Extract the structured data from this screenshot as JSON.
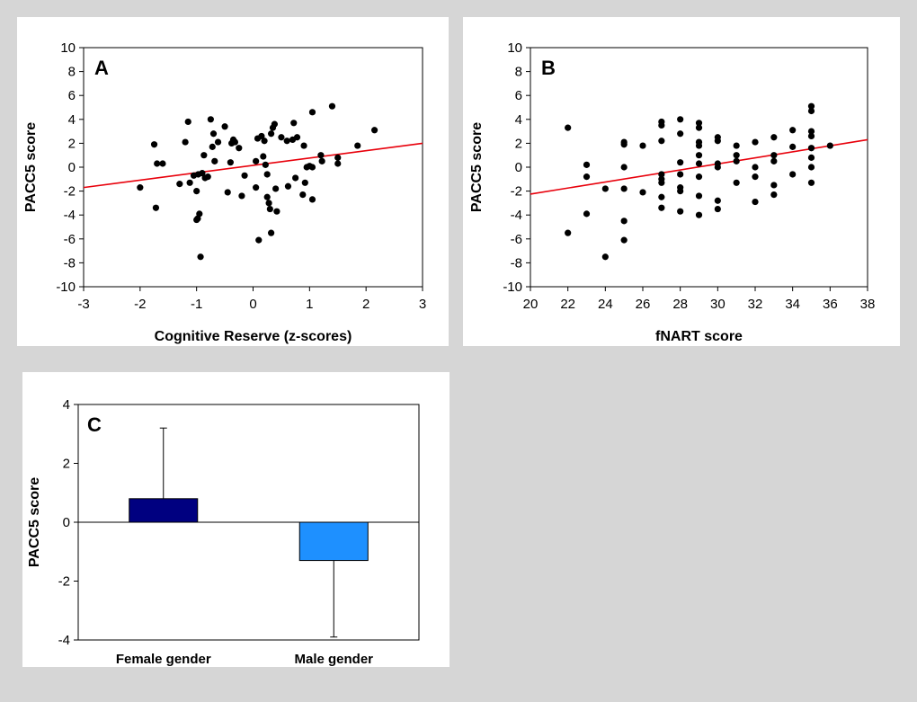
{
  "chart_data": [
    {
      "panel": "A",
      "type": "scatter",
      "title": "",
      "xlabel": "Cognitive Reserve (z-scores)",
      "ylabel": "PACC5 score",
      "xlim": [
        -3,
        3
      ],
      "ylim": [
        -10,
        10
      ],
      "xticks": [
        -3,
        -2,
        -1,
        0,
        1,
        2,
        3
      ],
      "yticks": [
        -10,
        -8,
        -6,
        -4,
        -2,
        0,
        2,
        4,
        6,
        8,
        10
      ],
      "trendline": {
        "color": "#e8000b",
        "x": [
          -3,
          3
        ],
        "y": [
          -1.7,
          2.0
        ]
      },
      "points": [
        [
          -2.0,
          -1.7
        ],
        [
          -1.75,
          1.9
        ],
        [
          -1.72,
          -3.4
        ],
        [
          -1.7,
          0.3
        ],
        [
          -1.6,
          0.3
        ],
        [
          -1.3,
          -1.4
        ],
        [
          -1.2,
          2.1
        ],
        [
          -1.15,
          3.8
        ],
        [
          -1.12,
          -1.3
        ],
        [
          -1.05,
          -0.7
        ],
        [
          -1.0,
          -4.4
        ],
        [
          -1.0,
          -2.0
        ],
        [
          -0.98,
          -4.3
        ],
        [
          -0.97,
          -0.6
        ],
        [
          -0.95,
          -3.9
        ],
        [
          -0.93,
          -7.5
        ],
        [
          -0.9,
          -0.5
        ],
        [
          -0.87,
          1.0
        ],
        [
          -0.85,
          -0.9
        ],
        [
          -0.8,
          -0.8
        ],
        [
          -0.75,
          4.0
        ],
        [
          -0.72,
          1.7
        ],
        [
          -0.7,
          2.8
        ],
        [
          -0.68,
          0.5
        ],
        [
          -0.62,
          2.1
        ],
        [
          -0.5,
          3.4
        ],
        [
          -0.45,
          -2.1
        ],
        [
          -0.4,
          0.4
        ],
        [
          -0.38,
          2.0
        ],
        [
          -0.35,
          2.3
        ],
        [
          -0.32,
          2.1
        ],
        [
          -0.25,
          1.6
        ],
        [
          -0.2,
          -2.4
        ],
        [
          -0.15,
          -0.7
        ],
        [
          0.05,
          -1.7
        ],
        [
          0.05,
          0.5
        ],
        [
          0.08,
          2.4
        ],
        [
          0.1,
          -6.1
        ],
        [
          0.15,
          2.6
        ],
        [
          0.18,
          0.9
        ],
        [
          0.2,
          2.2
        ],
        [
          0.22,
          0.2
        ],
        [
          0.25,
          -0.6
        ],
        [
          0.25,
          -2.5
        ],
        [
          0.28,
          -3.0
        ],
        [
          0.3,
          -3.5
        ],
        [
          0.32,
          -5.5
        ],
        [
          0.32,
          2.8
        ],
        [
          0.35,
          3.3
        ],
        [
          0.38,
          3.6
        ],
        [
          0.4,
          -1.8
        ],
        [
          0.42,
          -3.7
        ],
        [
          0.5,
          2.5
        ],
        [
          0.6,
          2.2
        ],
        [
          0.62,
          -1.6
        ],
        [
          0.7,
          2.3
        ],
        [
          0.72,
          3.7
        ],
        [
          0.75,
          -0.9
        ],
        [
          0.78,
          2.5
        ],
        [
          0.9,
          1.8
        ],
        [
          0.88,
          -2.3
        ],
        [
          0.92,
          -1.3
        ],
        [
          0.95,
          0.0
        ],
        [
          1.0,
          0.1
        ],
        [
          1.05,
          0.0
        ],
        [
          1.05,
          -2.7
        ],
        [
          1.05,
          4.6
        ],
        [
          1.2,
          1.0
        ],
        [
          1.22,
          0.5
        ],
        [
          1.4,
          5.1
        ],
        [
          1.5,
          0.8
        ],
        [
          1.5,
          0.3
        ],
        [
          1.85,
          1.8
        ],
        [
          2.15,
          3.1
        ]
      ]
    },
    {
      "panel": "B",
      "type": "scatter",
      "title": "",
      "xlabel": "fNART score",
      "ylabel": "PACC5 score",
      "xlim": [
        20,
        38
      ],
      "ylim": [
        -10,
        10
      ],
      "xticks": [
        20,
        22,
        24,
        26,
        28,
        30,
        32,
        34,
        36,
        38
      ],
      "yticks": [
        -10,
        -8,
        -6,
        -4,
        -2,
        0,
        2,
        4,
        6,
        8,
        10
      ],
      "trendline": {
        "color": "#e8000b",
        "x": [
          20,
          38
        ],
        "y": [
          -2.25,
          2.3
        ]
      },
      "points": [
        [
          22,
          3.3
        ],
        [
          22,
          -5.5
        ],
        [
          23,
          0.2
        ],
        [
          23,
          -0.8
        ],
        [
          23,
          -3.9
        ],
        [
          24,
          -7.5
        ],
        [
          24,
          -1.8
        ],
        [
          25,
          2.1
        ],
        [
          25,
          1.9
        ],
        [
          25,
          0.0
        ],
        [
          25,
          -1.8
        ],
        [
          25,
          -4.5
        ],
        [
          25,
          -6.1
        ],
        [
          26,
          1.8
        ],
        [
          26,
          -2.1
        ],
        [
          27,
          3.8
        ],
        [
          27,
          3.5
        ],
        [
          27,
          2.2
        ],
        [
          27,
          -0.6
        ],
        [
          27,
          -1.0
        ],
        [
          27,
          -1.3
        ],
        [
          27,
          -2.5
        ],
        [
          27,
          -3.4
        ],
        [
          28,
          4.0
        ],
        [
          28,
          2.8
        ],
        [
          28,
          0.4
        ],
        [
          28,
          -0.6
        ],
        [
          28,
          -1.7
        ],
        [
          28,
          -2.0
        ],
        [
          28,
          -3.7
        ],
        [
          29,
          3.7
        ],
        [
          29,
          3.3
        ],
        [
          29,
          2.1
        ],
        [
          29,
          1.8
        ],
        [
          29,
          1.0
        ],
        [
          29,
          0.3
        ],
        [
          29,
          -0.8
        ],
        [
          29,
          -2.4
        ],
        [
          29,
          -4.0
        ],
        [
          30,
          2.5
        ],
        [
          30,
          2.2
        ],
        [
          30,
          0.3
        ],
        [
          30,
          0.0
        ],
        [
          30,
          -2.8
        ],
        [
          30,
          -3.5
        ],
        [
          31,
          1.8
        ],
        [
          31,
          1.0
        ],
        [
          31,
          0.5
        ],
        [
          31,
          -1.3
        ],
        [
          32,
          2.1
        ],
        [
          32,
          0.0
        ],
        [
          32,
          -0.8
        ],
        [
          32,
          -2.9
        ],
        [
          33,
          2.5
        ],
        [
          33,
          1.0
        ],
        [
          33,
          0.5
        ],
        [
          33,
          -1.5
        ],
        [
          33,
          -2.3
        ],
        [
          34,
          3.1
        ],
        [
          34,
          1.7
        ],
        [
          34,
          -0.6
        ],
        [
          35,
          5.1
        ],
        [
          35,
          4.7
        ],
        [
          35,
          3.0
        ],
        [
          35,
          2.6
        ],
        [
          35,
          1.6
        ],
        [
          35,
          0.8
        ],
        [
          35,
          0.0
        ],
        [
          35,
          -1.3
        ],
        [
          36,
          1.8
        ]
      ]
    },
    {
      "panel": "C",
      "type": "bar",
      "title": "",
      "xlabel": "",
      "ylabel": "PACC5 score",
      "ylim": [
        -4,
        4
      ],
      "yticks": [
        -4,
        -2,
        0,
        2,
        4
      ],
      "categories": [
        "Female gender",
        "Male gender"
      ],
      "values": [
        0.8,
        -1.3
      ],
      "errors": [
        2.4,
        2.6
      ],
      "colors": [
        "#000080",
        "#1e90ff"
      ]
    }
  ]
}
